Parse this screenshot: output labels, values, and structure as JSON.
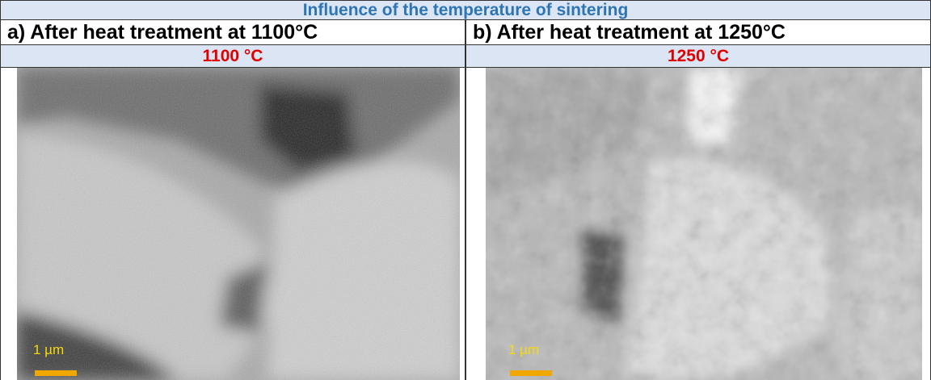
{
  "table": {
    "title": "Influence of the temperature of sintering",
    "columns": [
      {
        "heading": "a) After heat treatment at 1100°C",
        "temperature": "1100 °C",
        "scale_label": "1 µm"
      },
      {
        "heading": "b) After heat treatment at 1250°C",
        "temperature": "1250 °C",
        "scale_label": "1 µm"
      }
    ]
  }
}
